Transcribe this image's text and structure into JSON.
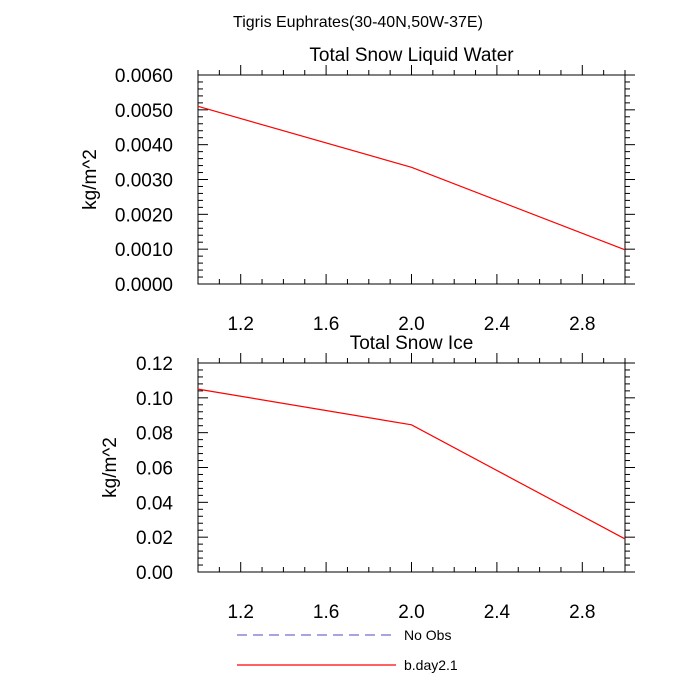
{
  "figure": {
    "title": "Tigris Euphrates(30-40N,50W-37E)"
  },
  "chart_data": [
    {
      "type": "line",
      "title": "Total Snow Liquid Water",
      "ylabel": "kg/m^2",
      "xlabel": "",
      "xlim": [
        1.0,
        3.0
      ],
      "ylim": [
        0.0,
        0.006
      ],
      "xticks": [
        "1.2",
        "1.6",
        "2.0",
        "2.4",
        "2.8"
      ],
      "yticks": [
        "0.0000",
        "0.0010",
        "0.0020",
        "0.0030",
        "0.0040",
        "0.0050",
        "0.0060"
      ],
      "grid": false,
      "series": [
        {
          "name": "b.day2.1",
          "color": "#ff0000",
          "dash": "solid",
          "x": [
            1,
            2,
            3
          ],
          "y": [
            0.0051,
            0.00335,
            0.00098
          ]
        }
      ]
    },
    {
      "type": "line",
      "title": "Total Snow Ice",
      "ylabel": "kg/m^2",
      "xlabel": "",
      "xlim": [
        1.0,
        3.0
      ],
      "ylim": [
        0.0,
        0.12
      ],
      "xticks": [
        "1.2",
        "1.6",
        "2.0",
        "2.4",
        "2.8"
      ],
      "yticks": [
        "0.00",
        "0.02",
        "0.04",
        "0.06",
        "0.08",
        "0.10",
        "0.12"
      ],
      "grid": false,
      "series": [
        {
          "name": "b.day2.1",
          "color": "#ff0000",
          "dash": "solid",
          "x": [
            1,
            2,
            3
          ],
          "y": [
            0.105,
            0.0845,
            0.019
          ]
        }
      ]
    }
  ],
  "legend": {
    "placement": "bottom",
    "entries": [
      {
        "label": "No Obs",
        "color": "#6f6fd0",
        "dash": "dashed"
      },
      {
        "label": "b.day2.1",
        "color": "#ff0000",
        "dash": "solid"
      }
    ]
  }
}
